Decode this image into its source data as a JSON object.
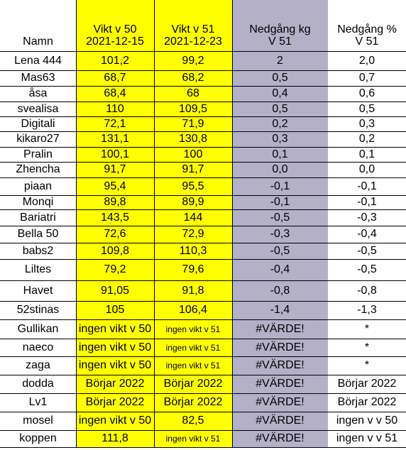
{
  "headers": {
    "name": "Namn",
    "w50": [
      "Vikt v 50",
      "2021-12-15"
    ],
    "w51": [
      "Vikt v 51",
      "2021-12-23"
    ],
    "kg": [
      "Nedgång kg",
      "V 51"
    ],
    "pct": [
      "Nedgång  %",
      "V 51"
    ]
  },
  "colors": {
    "weight_fill": "#ffff00",
    "kg_fill": "#b4b0c8",
    "grid": "#000000"
  },
  "rows": [
    {
      "name": "Lena 444",
      "w50": "101,2",
      "w51": "99,2",
      "kg": "2",
      "pct": "2,0"
    },
    {
      "name": "Mas63",
      "w50": "68,7",
      "w51": "68,2",
      "kg": "0,5",
      "pct": "0,7"
    },
    {
      "name": "åsa",
      "w50": "68,4",
      "w51": "68",
      "kg": "0,4",
      "pct": "0,6"
    },
    {
      "name": "svealisa",
      "w50": "110",
      "w51": "109,5",
      "kg": "0,5",
      "pct": "0,5"
    },
    {
      "name": "Digitali",
      "w50": "72,1",
      "w51": "71,9",
      "kg": "0,2",
      "pct": "0,3"
    },
    {
      "name": "kikaro27",
      "w50": "131,1",
      "w51": "130,8",
      "kg": "0,3",
      "pct": "0,2"
    },
    {
      "name": "Pralin",
      "w50": "100,1",
      "w51": "100",
      "kg": "0,1",
      "pct": "0,1"
    },
    {
      "name": "Zhencha",
      "w50": "91,7",
      "w51": "91,7",
      "kg": "0,0",
      "pct": "0,0"
    },
    {
      "name": "piaan",
      "w50": "95,4",
      "w51": "95,5",
      "kg": "-0,1",
      "pct": "-0,1"
    },
    {
      "name": "Monqi",
      "w50": "89,8",
      "w51": "89,9",
      "kg": "-0,1",
      "pct": "-0,1"
    },
    {
      "name": "Bariatri",
      "w50": "143,5",
      "w51": "144",
      "kg": "-0,5",
      "pct": "-0,3"
    },
    {
      "name": "Bella 50",
      "w50": "72,6",
      "w51": "72,9",
      "kg": "-0,3",
      "pct": "-0,4"
    },
    {
      "name": "babs2",
      "w50": "109,8",
      "w51": "110,3",
      "kg": "-0,5",
      "pct": "-0,5"
    },
    {
      "name": "Liltes",
      "w50": "79,2",
      "w51": "79,6",
      "kg": "-0,4",
      "pct": "-0,5"
    },
    {
      "name": "Havet",
      "w50": "91,05",
      "w51": "91,8",
      "kg": "-0,8",
      "pct": "-0,8"
    },
    {
      "name": "52stinas",
      "w50": "105",
      "w51": "106,4",
      "kg": "-1,4",
      "pct": "-1,3"
    },
    {
      "name": "Gullikan",
      "w50": "ingen vikt v 50",
      "w51": "ingen vikt v 51",
      "kg": "#VÄRDE!",
      "pct": "*"
    },
    {
      "name": "naeco",
      "w50": "ingen vikt v 50",
      "w51": "ingen vikt v 51",
      "kg": "#VÄRDE!",
      "pct": "*"
    },
    {
      "name": "zaga",
      "w50": "ingen vikt v 50",
      "w51": "ingen vikt v 51",
      "kg": "#VÄRDE!",
      "pct": "*"
    },
    {
      "name": "dodda",
      "w50": "Börjar 2022",
      "w51": "Börjar 2022",
      "kg": "#VÄRDE!",
      "pct": "Börjar 2022"
    },
    {
      "name": "Lv1",
      "w50": "Börjar 2022",
      "w51": "Börjar 2022",
      "kg": "#VÄRDE!",
      "pct": "Börjar 2022"
    },
    {
      "name": "mosel",
      "w50": "ingen vikt v 50",
      "w51": "82,5",
      "kg": "#VÄRDE!",
      "pct": "ingen v v 50"
    },
    {
      "name": "koppen",
      "w50": "111,8",
      "w51": "ingen vikt v 51",
      "kg": "#VÄRDE!",
      "pct": "ingen v v 51"
    }
  ]
}
